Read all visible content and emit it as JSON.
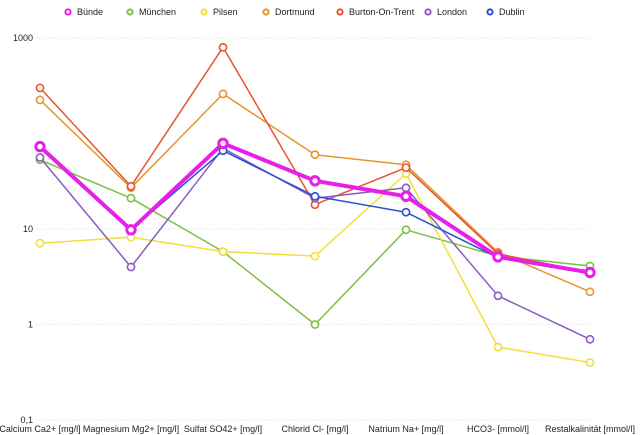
{
  "chart_data": {
    "type": "line",
    "yscale": "log",
    "ylim": [
      0.1,
      1000
    ],
    "yticks": [
      0.1,
      1,
      10,
      1000
    ],
    "ytick_labels": [
      "0,1",
      "1",
      "10",
      "1000"
    ],
    "grid": true,
    "legend_position": "top",
    "categories": [
      "Calcium Ca2+ [mg/l]",
      "Magnesium Mg2+ [mg/l]",
      "Sulfat SO42+ [mg/l]",
      "Chlorid Cl- [mg/l]",
      "Natrium Na+ [mg/l]",
      "HCO3- [mmol/l]",
      "Restalkalinität [mmol/l]"
    ],
    "series": [
      {
        "name": "Bünde",
        "color": "#e81fe8",
        "emphasis": true,
        "values": [
          73,
          9.8,
          79,
          32,
          22,
          5.1,
          3.5
        ]
      },
      {
        "name": "München",
        "color": "#7fbf40",
        "values": [
          53,
          21,
          5.8,
          1,
          9.8,
          5.2,
          4.1
        ]
      },
      {
        "name": "Pilsen",
        "color": "#f2df3c",
        "values": [
          7.1,
          8.2,
          5.8,
          5.2,
          38,
          0.58,
          0.4
        ]
      },
      {
        "name": "Dortmund",
        "color": "#e8942c",
        "values": [
          225,
          27,
          260,
          60,
          47,
          5.7,
          2.2
        ]
      },
      {
        "name": "Burton-On-Trent",
        "color": "#e8542c",
        "values": [
          300,
          28,
          800,
          18,
          44,
          5.5,
          3.5
        ]
      },
      {
        "name": "London",
        "color": "#8a5cc2",
        "values": [
          56,
          4.0,
          70,
          21,
          27,
          2.0,
          0.7
        ]
      },
      {
        "name": "Dublin",
        "color": "#2a4fd1",
        "values": [
          73,
          9.8,
          66,
          22,
          15,
          5.0,
          3.5
        ]
      }
    ]
  }
}
